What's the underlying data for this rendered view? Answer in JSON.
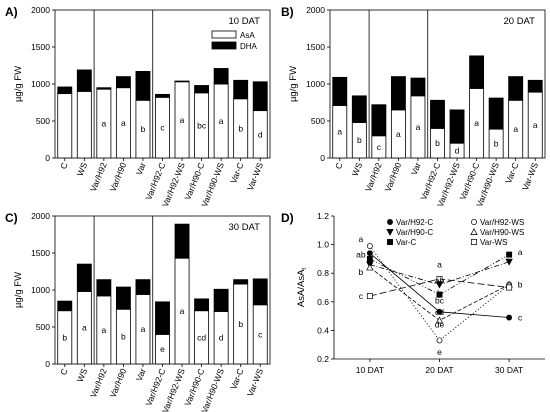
{
  "chart_data": [
    {
      "panel": "A)",
      "type": "bar",
      "stacked": true,
      "title": "10 DAT",
      "ylabel": "µg/g FW",
      "ylim": [
        0,
        2000
      ],
      "yticks": [
        0,
        500,
        1000,
        1500,
        2000
      ],
      "categories": [
        "C",
        "WS",
        "Var/H92",
        "Var/H90",
        "Var",
        "Var/H92-C",
        "Var/H92-WS",
        "Var/H90-C",
        "Var/H90-WS",
        "Var-C",
        "Var-WS"
      ],
      "series": [
        {
          "name": "AsA",
          "color": "#ffffff",
          "values": [
            870,
            900,
            930,
            950,
            780,
            820,
            1030,
            880,
            1000,
            800,
            640
          ]
        },
        {
          "name": "DHA",
          "color": "#000000",
          "values": [
            90,
            290,
            20,
            150,
            390,
            40,
            10,
            100,
            210,
            250,
            390
          ]
        }
      ],
      "letters": [
        "",
        "",
        "a",
        "a",
        "b",
        "c",
        "a",
        "bc",
        "a",
        "b",
        "d"
      ],
      "legend": "top-right",
      "separators_after": [
        1,
        4
      ]
    },
    {
      "panel": "B)",
      "type": "bar",
      "stacked": true,
      "title": "20 DAT",
      "ylabel": "µg/g FW",
      "ylim": [
        0,
        2000
      ],
      "yticks": [
        0,
        500,
        1000,
        1500,
        2000
      ],
      "categories": [
        "C",
        "WS",
        "Var/H92",
        "Var/H90",
        "Var",
        "Var/H92-C",
        "Var/H92-WS",
        "Var/H90-C",
        "Var/H90-WS",
        "Var-C",
        "Var-WS"
      ],
      "series": [
        {
          "name": "AsA",
          "color": "#ffffff",
          "values": [
            710,
            480,
            300,
            650,
            840,
            400,
            200,
            940,
            390,
            780,
            890
          ]
        },
        {
          "name": "DHA",
          "color": "#000000",
          "values": [
            380,
            360,
            420,
            450,
            240,
            380,
            450,
            440,
            420,
            320,
            160
          ]
        }
      ],
      "letters": [
        "a",
        "b",
        "c",
        "a",
        "a",
        "b",
        "d",
        "a",
        "b",
        "a",
        "a"
      ],
      "separators_after": [
        1,
        4
      ]
    },
    {
      "panel": "C)",
      "type": "bar",
      "stacked": true,
      "title": "30 DAT",
      "ylabel": "µg/g FW",
      "ylim": [
        0,
        2000
      ],
      "yticks": [
        0,
        500,
        1000,
        1500,
        2000
      ],
      "categories": [
        "C",
        "WS",
        "Var/H92",
        "Var/H90",
        "Var",
        "Var/H92-C",
        "Var/H92-WS",
        "Var/H90-C",
        "Var/H90-WS",
        "Var-C",
        "Var-WS"
      ],
      "series": [
        {
          "name": "AsA",
          "color": "#ffffff",
          "values": [
            720,
            980,
            920,
            740,
            940,
            400,
            1430,
            720,
            710,
            1080,
            800
          ]
        },
        {
          "name": "DHA",
          "color": "#000000",
          "values": [
            130,
            370,
            220,
            300,
            200,
            440,
            460,
            160,
            300,
            60,
            350
          ]
        }
      ],
      "letters": [
        "b",
        "a",
        "a",
        "b",
        "a",
        "e",
        "a",
        "cd",
        "d",
        "b",
        "c"
      ],
      "separators_after": [
        1,
        4
      ]
    },
    {
      "panel": "D)",
      "type": "line",
      "ylabel": "AsA/AsA",
      "ylabel_subscript": "t",
      "ylim": [
        0.2,
        1.2
      ],
      "yticks": [
        "0.2",
        "0.4",
        "0.6",
        "0.8",
        "1.0",
        "1.2"
      ],
      "x": [
        "10 DAT",
        "20 DAT",
        "30 DAT"
      ],
      "series": [
        {
          "name": "Var/H92-C",
          "marker": "filled-circle",
          "dash": "solid",
          "values": [
            0.94,
            0.53,
            0.49
          ]
        },
        {
          "name": "Var/H92-WS",
          "marker": "open-circle",
          "dash": "dotted",
          "values": [
            0.99,
            0.33,
            0.72
          ]
        },
        {
          "name": "Var/H90-C",
          "marker": "filled-triangle-down",
          "dash": "dash-dot",
          "values": [
            0.86,
            0.72,
            0.88
          ]
        },
        {
          "name": "Var/H90-WS",
          "marker": "open-triangle-up",
          "dash": "dashed",
          "values": [
            0.84,
            0.47,
            0.72
          ]
        },
        {
          "name": "Var-C",
          "marker": "filled-square",
          "dash": "dash-dot-dot",
          "values": [
            0.9,
            0.65,
            0.93
          ]
        },
        {
          "name": "Var-WS",
          "marker": "open-square",
          "dash": "long-dash",
          "values": [
            0.64,
            0.76,
            0.7
          ]
        }
      ],
      "point_labels": [
        {
          "x": "10 DAT",
          "values": [
            1.04,
            0.93,
            0.81,
            0.64
          ],
          "labels": [
            "a",
            "ab",
            "b",
            "c"
          ]
        },
        {
          "x": "20 DAT",
          "values": [
            0.86,
            0.75,
            0.66,
            0.61,
            0.53,
            0.44,
            0.25
          ],
          "labels": [
            "a",
            "ab",
            "b",
            "bc",
            "cd",
            "de",
            "e"
          ]
        },
        {
          "x": "30 DAT",
          "values": [
            0.95,
            0.72,
            0.49
          ],
          "labels": [
            "a",
            "b",
            "c"
          ]
        }
      ],
      "legend": "top"
    }
  ]
}
